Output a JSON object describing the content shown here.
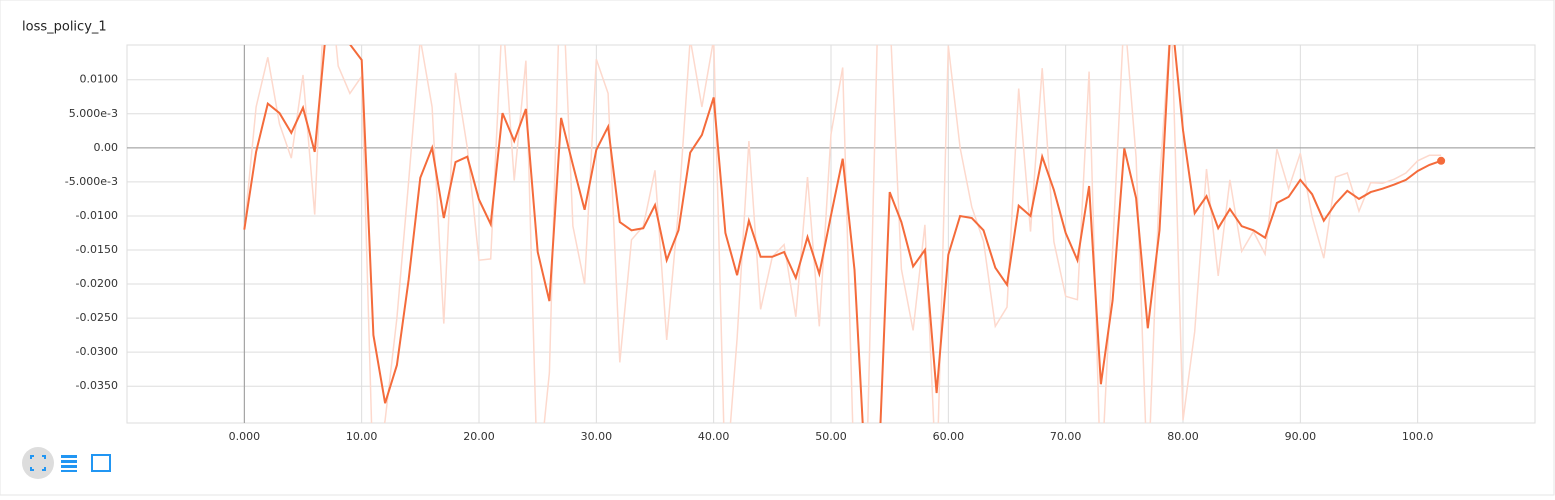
{
  "chart_data": {
    "type": "line",
    "title": "loss_policy_1",
    "x": [
      0,
      1,
      2,
      3,
      4,
      5,
      6,
      7,
      8,
      9,
      10,
      11,
      12,
      13,
      14,
      15,
      16,
      17,
      18,
      19,
      20,
      21,
      22,
      23,
      24,
      25,
      26,
      27,
      28,
      29,
      30,
      31,
      32,
      33,
      34,
      35,
      36,
      37,
      38,
      39,
      40,
      41,
      42,
      43,
      44,
      45,
      46,
      47,
      48,
      49,
      50,
      51,
      52,
      53,
      54,
      55,
      56,
      57,
      58,
      59,
      60,
      61,
      62,
      63,
      64,
      65,
      66,
      67,
      68,
      69,
      70,
      71,
      72,
      73,
      74,
      75,
      76,
      77,
      78,
      79,
      80,
      81,
      82,
      83,
      84,
      85,
      86,
      87,
      88,
      89,
      90,
      91,
      92,
      93,
      94,
      95,
      96,
      97,
      98,
      99,
      100,
      101,
      102
    ],
    "series": [
      {
        "color": "#fdd9cd",
        "values": [
          -0.012,
          0.006,
          0.0133,
          0.0035,
          -0.0015,
          0.0107,
          -0.0098,
          0.03,
          0.012,
          0.008,
          0.0105,
          -0.05,
          -0.04,
          -0.025,
          -0.005,
          0.016,
          0.006,
          -0.0258,
          0.011,
          0.0,
          -0.0165,
          -0.0163,
          0.02,
          -0.0048,
          0.0128,
          -0.05,
          -0.033,
          0.03,
          -0.0115,
          -0.02,
          0.013,
          0.008,
          -0.0315,
          -0.0135,
          -0.0115,
          -0.0033,
          -0.0282,
          -0.009,
          0.016,
          0.006,
          0.016,
          -0.05,
          -0.028,
          0.001,
          -0.0237,
          -0.016,
          -0.0142,
          -0.0248,
          -0.0043,
          -0.0262,
          0.002,
          0.0118,
          -0.05,
          -0.05,
          0.02,
          0.02,
          -0.0178,
          -0.0268,
          -0.0113,
          -0.05,
          0.015,
          0.0,
          -0.0087,
          -0.0137,
          -0.0262,
          -0.0234,
          0.0087,
          -0.0123,
          0.0117,
          -0.0138,
          -0.0218,
          -0.0223,
          0.0112,
          -0.05,
          -0.015,
          0.02,
          -0.0014,
          -0.05,
          -0.005,
          0.02,
          -0.04,
          -0.027,
          -0.0031,
          -0.0188,
          -0.0047,
          -0.0152,
          -0.0123,
          -0.0156,
          -0.0002,
          -0.006,
          -0.0008,
          -0.0101,
          -0.0162,
          -0.0043,
          -0.0037,
          -0.0093,
          -0.0051,
          -0.0052,
          -0.0046,
          -0.0037,
          -0.0019,
          -0.0011,
          -0.0011
        ]
      },
      {
        "color": "#f46b3b",
        "values": [
          -0.012,
          -0.0006,
          0.0065,
          0.0051,
          0.0022,
          0.0059,
          -0.0006,
          0.018,
          0.019,
          0.0152,
          0.0129,
          -0.0275,
          -0.0375,
          -0.0319,
          -0.0194,
          -0.0044,
          0.0,
          -0.0103,
          -0.0021,
          -0.0013,
          -0.0076,
          -0.0112,
          0.0051,
          0.001,
          0.0057,
          -0.0153,
          -0.0225,
          0.0044,
          -0.0025,
          -0.0091,
          -0.0003,
          0.0031,
          -0.0109,
          -0.0121,
          -0.0118,
          -0.0084,
          -0.0165,
          -0.0121,
          -0.0007,
          0.0019,
          0.0074,
          -0.0125,
          -0.0187,
          -0.0107,
          -0.016,
          -0.016,
          -0.0153,
          -0.0191,
          -0.0131,
          -0.0185,
          -0.0099,
          -0.0016,
          -0.0179,
          -0.05,
          -0.05,
          -0.0065,
          -0.0109,
          -0.0174,
          -0.015,
          -0.036,
          -0.0157,
          -0.01,
          -0.0103,
          -0.0121,
          -0.0176,
          -0.0201,
          -0.0085,
          -0.01,
          -0.0013,
          -0.0062,
          -0.0125,
          -0.0165,
          -0.0056,
          -0.0347,
          -0.0224,
          -0.0001,
          -0.0074,
          -0.0265,
          -0.0121,
          0.02,
          0.0026,
          -0.0096,
          -0.0071,
          -0.0118,
          -0.009,
          -0.0115,
          -0.0121,
          -0.0132,
          -0.0081,
          -0.0072,
          -0.0047,
          -0.0068,
          -0.0107,
          -0.0082,
          -0.0063,
          -0.0075,
          -0.0065,
          -0.006,
          -0.0054,
          -0.0047,
          -0.0034,
          -0.0025,
          -0.0019
        ]
      }
    ],
    "xlim": [
      -10,
      110
    ],
    "ylim": [
      -0.0404,
      0.0151
    ],
    "xticks": [
      {
        "value": 0,
        "label": "0.000"
      },
      {
        "value": 10,
        "label": "10.00"
      },
      {
        "value": 20,
        "label": "20.00"
      },
      {
        "value": 30,
        "label": "30.00"
      },
      {
        "value": 40,
        "label": "40.00"
      },
      {
        "value": 50,
        "label": "50.00"
      },
      {
        "value": 60,
        "label": "60.00"
      },
      {
        "value": 70,
        "label": "70.00"
      },
      {
        "value": 80,
        "label": "80.00"
      },
      {
        "value": 90,
        "label": "90.00"
      },
      {
        "value": 100,
        "label": "100.0"
      }
    ],
    "yticks": [
      {
        "value": 0.01,
        "label": "0.0100"
      },
      {
        "value": 0.005,
        "label": "5.000e-3"
      },
      {
        "value": 0,
        "label": "0.00"
      },
      {
        "value": -0.005,
        "label": "-5.000e-3"
      },
      {
        "value": -0.01,
        "label": "-0.0100"
      },
      {
        "value": -0.015,
        "label": "-0.0150"
      },
      {
        "value": -0.02,
        "label": "-0.0200"
      },
      {
        "value": -0.025,
        "label": "-0.0250"
      },
      {
        "value": -0.03,
        "label": "-0.0300"
      },
      {
        "value": -0.035,
        "label": "-0.0350"
      }
    ],
    "grid": true
  }
}
